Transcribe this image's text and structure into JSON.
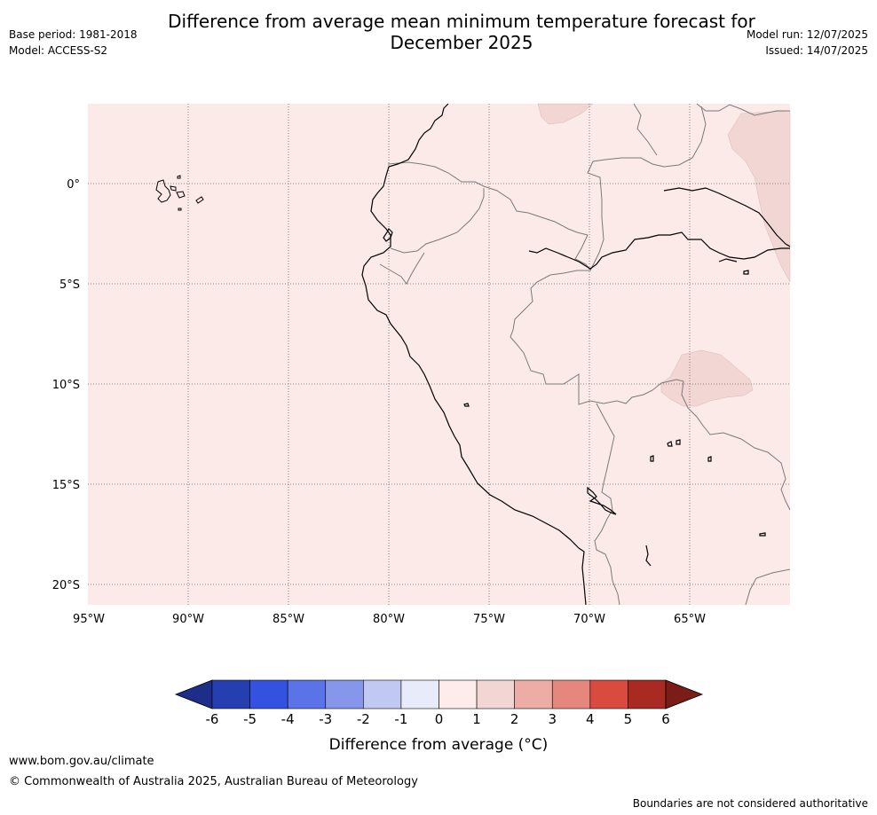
{
  "header": {
    "title_line1": "Difference from average mean minimum temperature forecast for",
    "title_line2": "December 2025",
    "base_period": "Base period: 1981-2018",
    "model": "Model: ACCESS-S2",
    "model_run": "Model run: 12/07/2025",
    "issued": "Issued: 14/07/2025"
  },
  "map": {
    "background_color": "#fbeae8",
    "warm_patch_color": "#f2d6d3",
    "lon_labels": [
      "95°W",
      "90°W",
      "85°W",
      "80°W",
      "75°W",
      "70°W",
      "65°W"
    ],
    "lat_labels": [
      "0°",
      "5°S",
      "10°S",
      "15°S",
      "20°S"
    ]
  },
  "colorbar": {
    "title": "Difference from average (°C)",
    "ticks": [
      "-6",
      "-5",
      "-4",
      "-3",
      "-2",
      "-1",
      "0",
      "1",
      "2",
      "3",
      "4",
      "5",
      "6"
    ],
    "colors": [
      "#1e2d8a",
      "#263fb0",
      "#3452e0",
      "#5a73e6",
      "#8696ea",
      "#c1c9f3",
      "#e8ebfa",
      "#fdecea",
      "#f2d6d3",
      "#edaca6",
      "#e5877d",
      "#d84b3e",
      "#a92a22",
      "#7b1d17"
    ]
  },
  "footer": {
    "url": "www.bom.gov.au/climate",
    "copyright": "© Commonwealth of Australia 2025, Australian Bureau of Meteorology",
    "disclaimer": "Boundaries are not considered authoritative"
  }
}
